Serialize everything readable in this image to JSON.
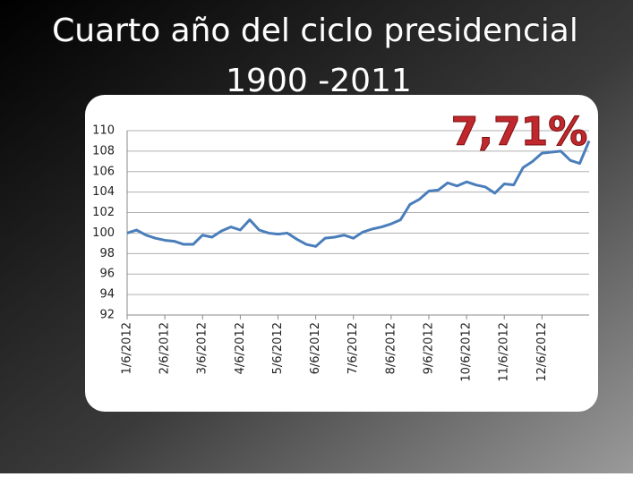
{
  "chart_data": {
    "type": "line",
    "title": "Cuarto año del ciclo presidencial",
    "subtitle": "1900 -2011",
    "annotation": "7,71%",
    "categories": [
      "1/6/2012",
      null,
      null,
      null,
      "2/6/2012",
      null,
      null,
      null,
      "3/6/2012",
      null,
      null,
      null,
      "4/6/2012",
      null,
      null,
      null,
      "5/6/2012",
      null,
      null,
      null,
      "6/6/2012",
      null,
      null,
      null,
      "7/6/2012",
      null,
      null,
      null,
      "8/6/2012",
      null,
      null,
      null,
      "9/6/2012",
      null,
      null,
      null,
      "10/6/2012",
      null,
      null,
      null,
      "11/6/2012",
      null,
      null,
      null,
      "12/6/2012",
      null,
      null,
      null,
      null,
      null
    ],
    "series": [
      {
        "color": "#4a7ebb",
        "values": [
          100.0,
          100.3,
          99.8,
          99.5,
          99.3,
          99.2,
          98.9,
          98.9,
          99.8,
          99.6,
          100.2,
          100.6,
          100.3,
          101.3,
          100.3,
          100.0,
          99.9,
          100.0,
          99.4,
          98.9,
          98.7,
          99.5,
          99.6,
          99.8,
          99.5,
          100.1,
          100.4,
          100.6,
          100.9,
          101.3,
          102.8,
          103.3,
          104.1,
          104.2,
          104.9,
          104.6,
          105.0,
          104.7,
          104.5,
          103.9,
          104.8,
          104.7,
          106.4,
          107.0,
          107.8,
          107.9,
          108.0,
          107.1,
          106.8,
          109.0
        ]
      }
    ],
    "ylim": [
      92,
      110
    ],
    "yticks": [
      92,
      94,
      96,
      98,
      100,
      102,
      104,
      106,
      108,
      110
    ],
    "grid": true
  }
}
